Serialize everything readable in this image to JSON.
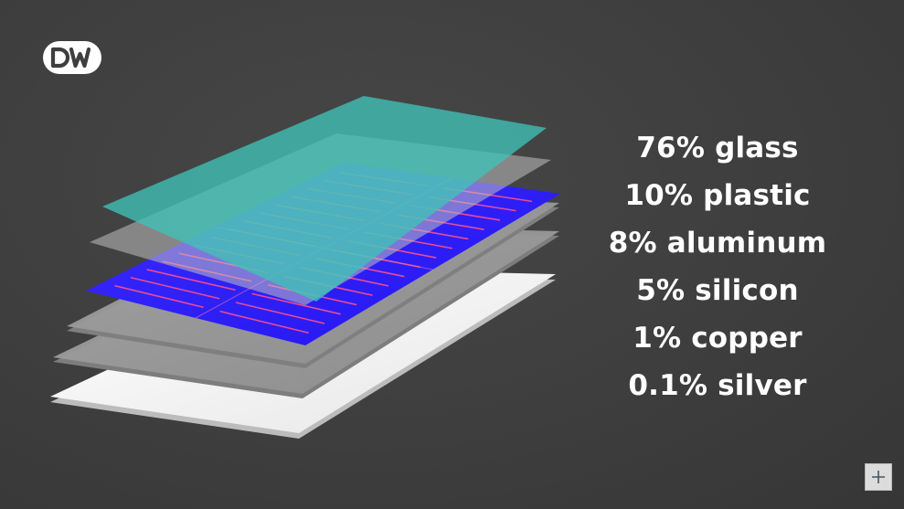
{
  "brand": {
    "logo_text": "DW",
    "logo_icon": "dw-logo"
  },
  "illustration": {
    "subject": "solar-panel-exploded-layers",
    "colors": {
      "background": "#3e3e3e",
      "glass_layer": "#3fc1b7",
      "cell_layer": "#2a1fff",
      "cell_stripes": "#ff4f8a",
      "gray_layer": "#9a9a9a",
      "backsheet": "#f2f2f2"
    }
  },
  "composition": [
    {
      "label": "76% glass"
    },
    {
      "label": "10% plastic"
    },
    {
      "label": "8% aluminum"
    },
    {
      "label": "5% silicon"
    },
    {
      "label": "1% copper"
    },
    {
      "label": "0.1% silver"
    }
  ],
  "controls": {
    "expand_icon": "plus-icon"
  }
}
